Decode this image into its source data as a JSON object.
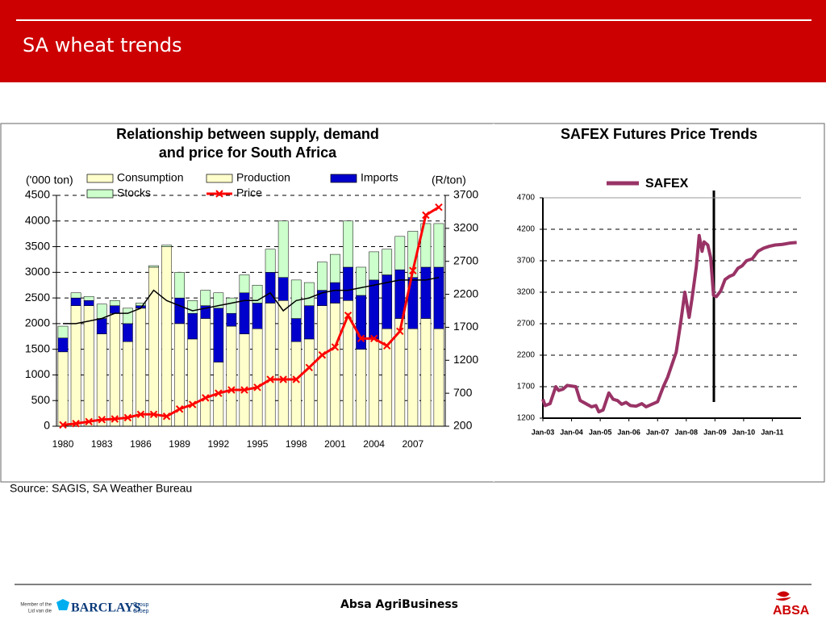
{
  "header": {
    "title": "SA wheat trends"
  },
  "chart_data": [
    {
      "type": "combo",
      "title": [
        "Relationship between supply, demand",
        "and price for South Africa"
      ],
      "y_label": "('000 ton)",
      "y2_label": "(R/ton)",
      "categories": [
        "1980",
        null,
        null,
        "1983",
        null,
        null,
        "1986",
        null,
        null,
        "1989",
        null,
        null,
        "1992",
        null,
        null,
        "1995",
        null,
        null,
        "1998",
        null,
        null,
        "2001",
        null,
        null,
        "2004",
        null,
        null,
        "2007",
        null,
        null
      ],
      "ylim": [
        0,
        4500
      ],
      "yticks": [
        0,
        500,
        1000,
        1500,
        2000,
        2500,
        3000,
        3500,
        4000,
        4500
      ],
      "y2lim": [
        200,
        3700
      ],
      "y2ticks": [
        200,
        700,
        1200,
        1700,
        2200,
        2700,
        3200,
        3700
      ],
      "grid": true,
      "series": [
        {
          "name": "Consumption",
          "kind": "line",
          "color": "#000000",
          "values": [
            2000,
            2000,
            2050,
            2100,
            2200,
            2200,
            2300,
            2650,
            2450,
            2350,
            2250,
            2300,
            2350,
            2400,
            2450,
            2450,
            2600,
            2250,
            2450,
            2500,
            2600,
            2650,
            2650,
            2700,
            2750,
            2800,
            2850,
            2850,
            2850,
            2900
          ]
        },
        {
          "name": "Production",
          "kind": "bar",
          "color": "#ffffcc",
          "values": [
            1450,
            2350,
            2350,
            1800,
            2200,
            1650,
            2300,
            3100,
            3500,
            2000,
            1700,
            2100,
            1250,
            1950,
            1800,
            1900,
            2400,
            2450,
            1650,
            1700,
            2350,
            2400,
            2450,
            1500,
            1700,
            1900,
            2100,
            1900,
            2100,
            1900
          ]
        },
        {
          "name": "Imports",
          "kind": "bar",
          "color": "#0000cc",
          "values": [
            270,
            150,
            100,
            300,
            150,
            350,
            50,
            0,
            0,
            500,
            500,
            250,
            1050,
            250,
            800,
            500,
            600,
            450,
            450,
            650,
            300,
            400,
            650,
            1050,
            1150,
            1050,
            950,
            1000,
            1000,
            1200
          ]
        },
        {
          "name": "Stocks",
          "kind": "bar",
          "color": "#ccffcc",
          "values": [
            230,
            100,
            80,
            280,
            100,
            300,
            50,
            30,
            30,
            500,
            250,
            300,
            300,
            300,
            350,
            350,
            450,
            1100,
            750,
            450,
            550,
            550,
            900,
            550,
            550,
            500,
            650,
            900,
            850,
            850
          ]
        },
        {
          "name": "Price",
          "kind": "line",
          "axis": "y2",
          "color": "#ff0000",
          "values": [
            220,
            240,
            270,
            300,
            310,
            330,
            380,
            380,
            350,
            460,
            530,
            630,
            700,
            750,
            750,
            790,
            910,
            910,
            910,
            1090,
            1280,
            1400,
            1880,
            1530,
            1530,
            1420,
            1640,
            2560,
            3400,
            3520
          ]
        }
      ]
    },
    {
      "type": "line",
      "title": "SAFEX Futures Price Trends",
      "x": [
        2003.0,
        2003.08,
        2003.25,
        2003.45,
        2003.55,
        2003.7,
        2003.85,
        2004.0,
        2004.15,
        2004.3,
        2004.5,
        2004.7,
        2004.85,
        2004.95,
        2005.1,
        2005.3,
        2005.45,
        2005.6,
        2005.75,
        2005.9,
        2006.05,
        2006.25,
        2006.45,
        2006.6,
        2006.8,
        2007.0,
        2007.2,
        2007.35,
        2007.5,
        2007.65,
        2007.8,
        2007.95,
        2008.1,
        2008.2,
        2008.35,
        2008.45,
        2008.55,
        2008.62,
        2008.75,
        2008.85,
        2008.95,
        2009.05,
        2009.2,
        2009.35,
        2009.5,
        2009.65,
        2009.8,
        2009.95,
        2010.1,
        2010.3,
        2010.5,
        2010.7,
        2010.9,
        2011.1,
        2011.35,
        2011.6,
        2011.85
      ],
      "xlim": [
        2003,
        2012
      ],
      "xticks": [
        {
          "value": 2003,
          "label": "Jan-03"
        },
        {
          "value": 2004,
          "label": "Jan-04"
        },
        {
          "value": 2005,
          "label": "Jan-05"
        },
        {
          "value": 2006,
          "label": "Jan-06"
        },
        {
          "value": 2007,
          "label": "Jan-07"
        },
        {
          "value": 2008,
          "label": "Jan-08"
        },
        {
          "value": 2009,
          "label": "Jan-09"
        },
        {
          "value": 2010,
          "label": "Jan-10"
        },
        {
          "value": 2011,
          "label": "Jan-11"
        }
      ],
      "ylim": [
        1200,
        4700
      ],
      "yticks": [
        1200,
        1700,
        2200,
        2700,
        3200,
        3700,
        4200,
        4700
      ],
      "grid": true,
      "series": [
        {
          "name": "SAFEX",
          "color": "#993366",
          "values": [
            1500,
            1400,
            1430,
            1700,
            1640,
            1660,
            1720,
            1710,
            1700,
            1480,
            1430,
            1380,
            1400,
            1300,
            1330,
            1600,
            1500,
            1480,
            1420,
            1450,
            1400,
            1390,
            1430,
            1380,
            1420,
            1460,
            1700,
            1850,
            2050,
            2250,
            2700,
            3200,
            2800,
            3100,
            3600,
            4100,
            3850,
            4000,
            3950,
            3750,
            3150,
            3130,
            3220,
            3400,
            3450,
            3480,
            3580,
            3620,
            3700,
            3730,
            3850,
            3900,
            3930,
            3950,
            3960,
            3980,
            3990
          ]
        }
      ]
    }
  ],
  "source": "Source: SAGIS, SA Weather Bureau",
  "footer": {
    "center": "Absa AgriBusiness",
    "member": [
      "Member of the",
      "Lid van die"
    ],
    "barclays": "BARCLAYS",
    "group": [
      "Group",
      "Groep"
    ],
    "absa": "ABSA"
  }
}
